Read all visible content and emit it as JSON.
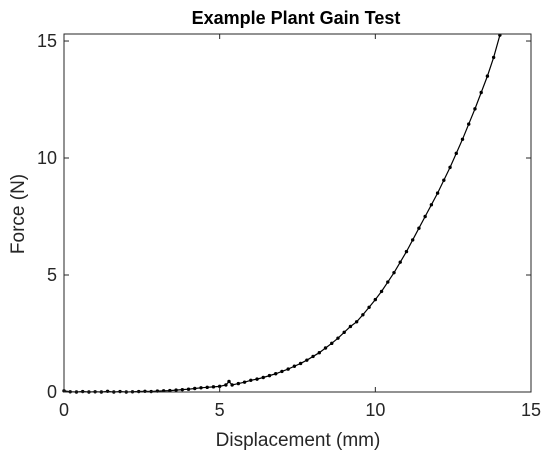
{
  "chart_data": {
    "type": "line",
    "title": "Example Plant Gain Test",
    "xlabel": "Displacement (mm)",
    "ylabel": "Force (N)",
    "xlim": [
      0,
      15
    ],
    "ylim": [
      0,
      15.3
    ],
    "xticks": [
      0,
      5,
      10,
      15
    ],
    "yticks": [
      0,
      5,
      10,
      15
    ],
    "xtick_labels": [
      "0",
      "5",
      "10",
      "15"
    ],
    "ytick_labels": [
      "0",
      "5",
      "10",
      "15"
    ],
    "grid": false,
    "legend": false,
    "series": [
      {
        "color": "#000000",
        "marker": "dot",
        "x": [
          0.0,
          0.2,
          0.4,
          0.6,
          0.8,
          1.0,
          1.2,
          1.4,
          1.6,
          1.8,
          2.0,
          2.2,
          2.4,
          2.6,
          2.8,
          3.0,
          3.2,
          3.4,
          3.6,
          3.8,
          4.0,
          4.2,
          4.4,
          4.6,
          4.8,
          5.0,
          5.2,
          5.3,
          5.4,
          5.6,
          5.8,
          6.0,
          6.2,
          6.4,
          6.6,
          6.8,
          7.0,
          7.2,
          7.4,
          7.6,
          7.8,
          8.0,
          8.2,
          8.4,
          8.6,
          8.8,
          9.0,
          9.2,
          9.4,
          9.6,
          9.8,
          10.0,
          10.2,
          10.4,
          10.6,
          10.8,
          11.0,
          11.2,
          11.4,
          11.6,
          11.8,
          12.0,
          12.2,
          12.4,
          12.6,
          12.8,
          13.0,
          13.2,
          13.4,
          13.6,
          13.8,
          14.0
        ],
        "y": [
          0.05,
          0.01,
          0.0,
          0.02,
          0.0,
          0.01,
          0.0,
          0.03,
          0.0,
          0.02,
          0.0,
          0.01,
          0.02,
          0.03,
          0.02,
          0.04,
          0.05,
          0.06,
          0.08,
          0.1,
          0.12,
          0.15,
          0.18,
          0.2,
          0.22,
          0.24,
          0.3,
          0.45,
          0.3,
          0.36,
          0.42,
          0.5,
          0.55,
          0.62,
          0.7,
          0.78,
          0.88,
          0.98,
          1.1,
          1.22,
          1.36,
          1.52,
          1.68,
          1.88,
          2.08,
          2.3,
          2.55,
          2.8,
          3.0,
          3.3,
          3.62,
          3.95,
          4.3,
          4.7,
          5.1,
          5.55,
          6.0,
          6.5,
          7.0,
          7.5,
          8.0,
          8.5,
          9.05,
          9.6,
          10.2,
          10.8,
          11.45,
          12.1,
          12.8,
          13.5,
          14.3,
          15.25
        ]
      }
    ]
  }
}
